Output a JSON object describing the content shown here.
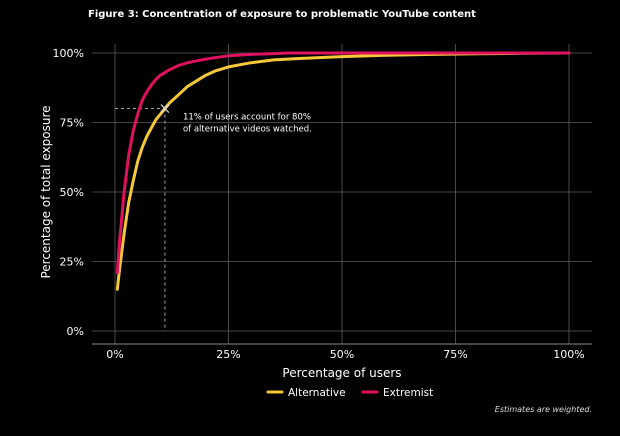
{
  "title": "Figure 3: Concentration of exposure to problematic YouTube content",
  "footnote": "Estimates are weighted.",
  "chart_data": {
    "type": "line",
    "title": "Figure 3: Concentration of exposure to problematic YouTube content",
    "xlabel": "Percentage of users",
    "ylabel": "Percentage of total exposure",
    "xlim": [
      0,
      100
    ],
    "ylim": [
      0,
      100
    ],
    "xticks": [
      0,
      25,
      50,
      75,
      100
    ],
    "yticks": [
      0,
      25,
      50,
      75,
      100
    ],
    "xtick_labels": [
      "0%",
      "25%",
      "50%",
      "75%",
      "100%"
    ],
    "ytick_labels": [
      "0%",
      "25%",
      "50%",
      "75%",
      "100%"
    ],
    "grid": true,
    "legend": "bottom-center",
    "series": [
      {
        "name": "Alternative",
        "color": "#f5c838",
        "x": [
          0.5,
          1,
          2,
          3,
          4,
          5,
          6,
          7,
          8,
          9,
          10,
          11,
          12,
          14,
          16,
          18,
          20,
          22,
          25,
          30,
          35,
          40,
          50,
          60,
          70,
          80,
          90,
          100
        ],
        "y": [
          15,
          22,
          35,
          46,
          54,
          61,
          66,
          70,
          73,
          76,
          78,
          80,
          82,
          85,
          88,
          90,
          92,
          93.5,
          95,
          96.5,
          97.5,
          98,
          98.7,
          99.2,
          99.5,
          99.7,
          99.9,
          100
        ]
      },
      {
        "name": "Extremist",
        "color": "#e0115f",
        "x": [
          0.5,
          1,
          2,
          3,
          4,
          5,
          6,
          7,
          8,
          9,
          10,
          12,
          14,
          16,
          18,
          20,
          22,
          25,
          30,
          35,
          38,
          40,
          50,
          60,
          70,
          80,
          90,
          100
        ],
        "y": [
          21,
          32,
          50,
          63,
          72,
          78,
          83,
          86,
          88.5,
          90.5,
          92,
          94,
          95.5,
          96.5,
          97.2,
          97.8,
          98.3,
          99,
          99.5,
          99.8,
          100,
          100,
          100,
          100,
          100,
          100,
          100,
          100
        ]
      }
    ],
    "annotation": {
      "text_lines": [
        "11% of users account for 80%",
        "of alternative videos watched."
      ],
      "x": 11,
      "y": 80
    }
  }
}
